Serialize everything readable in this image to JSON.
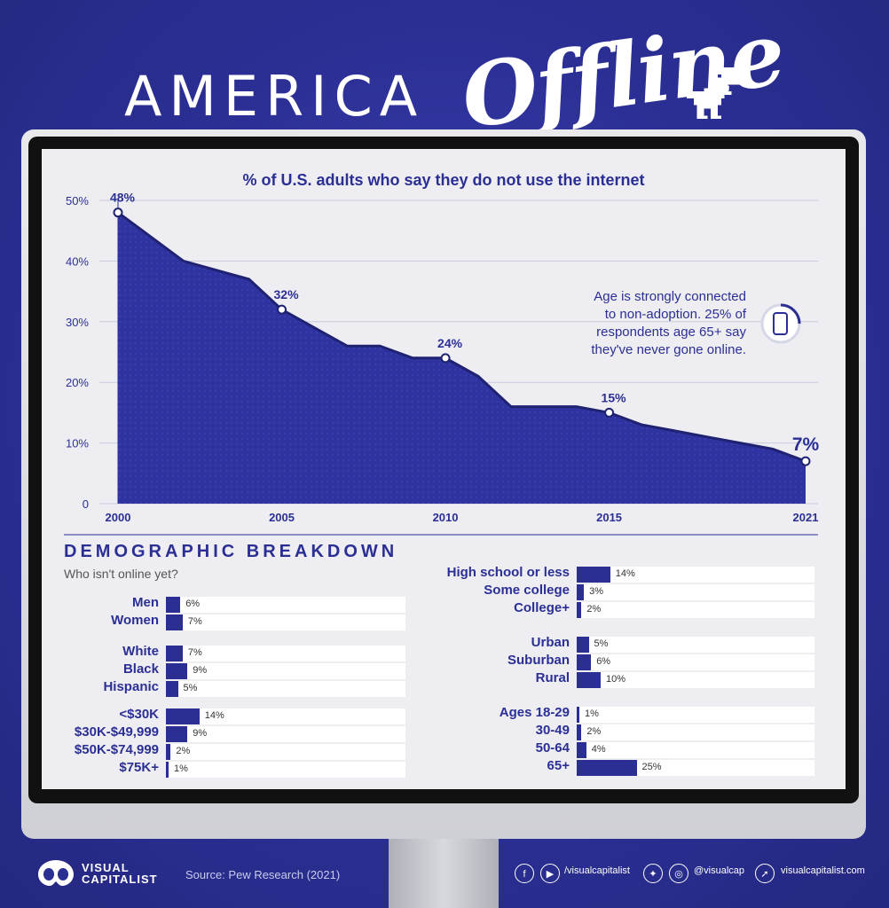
{
  "header": {
    "title_main": "AMERICA",
    "title_accent": "Offline"
  },
  "chart_data": {
    "type": "area",
    "title": "% of U.S. adults who say they do not use the internet",
    "x": [
      2000,
      2002,
      2004,
      2005,
      2007,
      2008,
      2009,
      2010,
      2011,
      2012,
      2013,
      2014,
      2015,
      2016,
      2017,
      2018,
      2019,
      2020,
      2021
    ],
    "values": [
      48,
      40,
      37,
      32,
      26,
      26,
      24,
      24,
      21,
      16,
      16,
      16,
      15,
      13,
      12,
      11,
      10,
      9,
      7
    ],
    "labeled_points": [
      {
        "x": 2000,
        "label": "48%"
      },
      {
        "x": 2005,
        "label": "32%"
      },
      {
        "x": 2010,
        "label": "24%"
      },
      {
        "x": 2015,
        "label": "15%"
      },
      {
        "x": 2021,
        "label": "7%"
      }
    ],
    "xticks": [
      "2000",
      "2005",
      "2010",
      "2015",
      "2021"
    ],
    "yticks": [
      "0",
      "10%",
      "20%",
      "30%",
      "40%",
      "50%"
    ],
    "ylim": [
      0,
      50
    ],
    "grid": true,
    "annotation": "Age is strongly connected to non-adoption. 25% of respondents age 65+ say they've never gone online.",
    "colors": {
      "fill": "#2b2f94",
      "line": "#1f2270"
    }
  },
  "breakdown": {
    "title": "DEMOGRAPHIC BREAKDOWN",
    "subtitle": "Who isn't online yet?",
    "left_groups": [
      [
        {
          "label": "Men",
          "value": 6,
          "text": "6%"
        },
        {
          "label": "Women",
          "value": 7,
          "text": "7%"
        }
      ],
      [
        {
          "label": "White",
          "value": 7,
          "text": "7%"
        },
        {
          "label": "Black",
          "value": 9,
          "text": "9%"
        },
        {
          "label": "Hispanic",
          "value": 5,
          "text": "5%"
        }
      ],
      [
        {
          "label": "<$30K",
          "value": 14,
          "text": "14%"
        },
        {
          "label": "$30K-$49,999",
          "value": 9,
          "text": "9%"
        },
        {
          "label": "$50K-$74,999",
          "value": 2,
          "text": "2%"
        },
        {
          "label": "$75K+",
          "value": 1,
          "text": "1%"
        }
      ]
    ],
    "right_groups": [
      [
        {
          "label": "High school or less",
          "value": 14,
          "text": "14%"
        },
        {
          "label": "Some college",
          "value": 3,
          "text": "3%"
        },
        {
          "label": "College+",
          "value": 2,
          "text": "2%"
        }
      ],
      [
        {
          "label": "Urban",
          "value": 5,
          "text": "5%"
        },
        {
          "label": "Suburban",
          "value": 6,
          "text": "6%"
        },
        {
          "label": "Rural",
          "value": 10,
          "text": "10%"
        }
      ],
      [
        {
          "label": "Ages 18-29",
          "value": 1,
          "text": "1%"
        },
        {
          "label": "30-49",
          "value": 2,
          "text": "2%"
        },
        {
          "label": "50-64",
          "value": 4,
          "text": "4%"
        },
        {
          "label": "65+",
          "value": 25,
          "text": "25%"
        }
      ]
    ]
  },
  "footer": {
    "logo_line1": "VISUAL",
    "logo_line2": "CAPITALIST",
    "source": "Source: Pew Research (2021)",
    "social_1": "/visualcapitalist",
    "social_2": "@visualcap",
    "social_3": "visualcapitalist.com"
  }
}
